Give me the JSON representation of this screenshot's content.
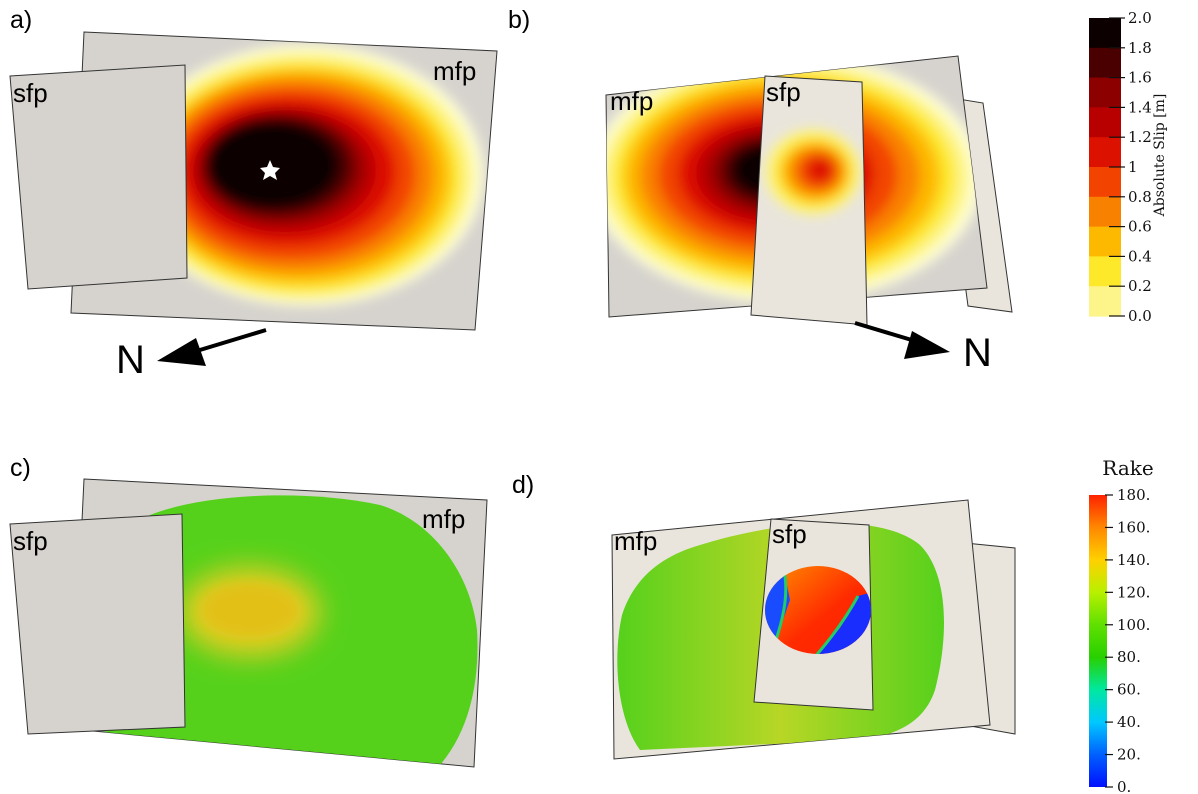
{
  "panels": {
    "a": {
      "label": "a)",
      "fault1": "sfp",
      "fault2": "mfp"
    },
    "b": {
      "label": "b)",
      "fault1": "mfp",
      "fault2": "sfp"
    },
    "c": {
      "label": "c)",
      "fault1": "sfp",
      "fault2": "mfp"
    },
    "d": {
      "label": "d)",
      "fault1": "mfp",
      "fault2": "sfp"
    }
  },
  "compass": {
    "a": "N",
    "b": "N"
  },
  "slip_colorbar": {
    "title": "Absolute Slip [m]",
    "ticks": [
      "2.0",
      "1.8",
      "1.6",
      "1.4",
      "1.2",
      "1",
      "0.8",
      "0.6",
      "0.4",
      "0.2",
      "0.0"
    ],
    "colors": [
      "#0d0000",
      "#4a0000",
      "#8c0000",
      "#b80000",
      "#dd1100",
      "#f24400",
      "#f98100",
      "#fdb800",
      "#fde82a",
      "#fdf58a",
      "#ffffd8"
    ]
  },
  "rake_colorbar": {
    "title": "Rake",
    "ticks": [
      "180.",
      "160.",
      "140.",
      "120.",
      "100.",
      "80.",
      "60.",
      "40.",
      "20.",
      "0."
    ],
    "gradient": [
      "#ff2200",
      "#ff8800",
      "#ffd000",
      "#b8f000",
      "#60e000",
      "#28d000",
      "#00e8a0",
      "#00c8ff",
      "#0060ff",
      "#0010ff"
    ]
  },
  "colors": {
    "fault_plane": "#d6d3ce",
    "fault_plane_light": "#e9e5dc",
    "rake_green": "#55d11c",
    "rake_yellow": "#e2ce22"
  }
}
